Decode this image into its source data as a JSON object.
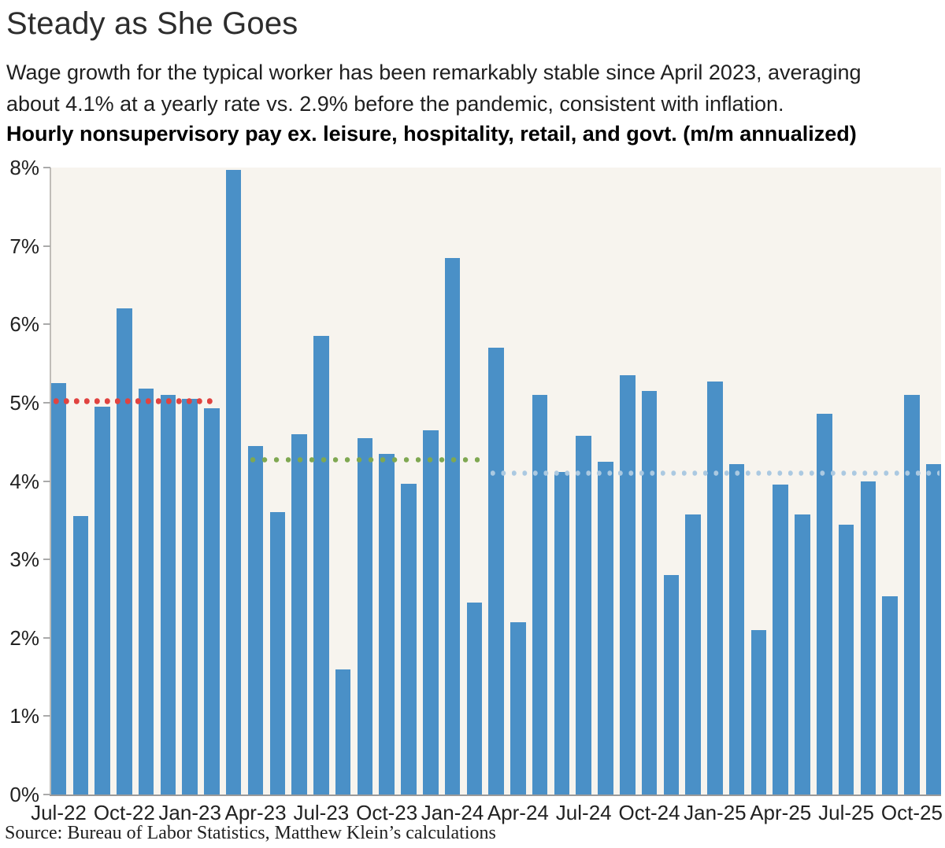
{
  "header": {
    "title": "Steady as She Goes",
    "subtitle_lines": [
      "Wage growth for the typical worker has been remarkably stable since April 2023, averaging",
      "about 4.1% at a yearly rate vs. 2.9% before the pandemic, consistent with inflation."
    ],
    "heading": "Hourly nonsupervisory pay ex. leisure, hospitality, retail, and govt. (m/m annualized)"
  },
  "chart_data": {
    "type": "bar",
    "title": "Steady as She Goes",
    "subtitle": "Wage growth for the typical worker has been remarkably stable since April 2023, averaging about 4.1% at a yearly rate vs. 2.9% before the pandemic, consistent with inflation.",
    "heading": "Hourly nonsupervisory pay ex. leisure, hospitality, retail, and govt. (m/m annualized)",
    "categories": [
      "Jul-22",
      "Aug-22",
      "Sep-22",
      "Oct-22",
      "Nov-22",
      "Dec-22",
      "Jan-23",
      "Feb-23",
      "Mar-23",
      "Apr-23",
      "May-23",
      "Jun-23",
      "Jul-23",
      "Aug-23",
      "Sep-23",
      "Oct-23",
      "Nov-23",
      "Dec-23",
      "Jan-24",
      "Feb-24",
      "Mar-24",
      "Apr-24",
      "May-24",
      "Jun-24",
      "Jul-24",
      "Aug-24",
      "Sep-24",
      "Oct-24",
      "Nov-24",
      "Dec-24",
      "Jan-25",
      "Feb-25",
      "Mar-25",
      "Apr-25",
      "May-25",
      "Jun-25",
      "Jul-25",
      "Aug-25",
      "Sep-25",
      "Oct-25",
      "Nov-25"
    ],
    "values": [
      5.25,
      3.55,
      4.95,
      6.2,
      5.18,
      5.1,
      5.05,
      4.93,
      7.97,
      4.45,
      3.6,
      4.6,
      5.85,
      1.6,
      4.55,
      4.35,
      3.97,
      4.65,
      6.85,
      2.45,
      5.7,
      2.2,
      5.1,
      4.12,
      4.58,
      4.25,
      5.35,
      5.15,
      2.8,
      3.57,
      5.27,
      4.22,
      2.1,
      3.96,
      3.57,
      4.86,
      3.44,
      4.0,
      2.53,
      5.1,
      4.22
    ],
    "x_tick_every": 3,
    "ylim": [
      0,
      8
    ],
    "y_tick_labels": [
      "0%",
      "1%",
      "2%",
      "3%",
      "4%",
      "5%",
      "6%",
      "7%",
      "8%"
    ],
    "grid": false,
    "legend": "none",
    "reference_lines": [
      {
        "name": "avg-jul22-feb23",
        "value": 5.02,
        "start_index": 0,
        "end_index": 7,
        "color": "#e04340",
        "dot": 6.5,
        "gap": 13
      },
      {
        "name": "avg-apr23-feb24",
        "value": 4.27,
        "start_index": 9,
        "end_index": 19,
        "color": "#7fa851",
        "dot": 6,
        "gap": 15
      },
      {
        "name": "avg-mar24-nov25",
        "value": 4.1,
        "start_index": 20,
        "end_index": 40,
        "color": "#abc9e1",
        "dot": 5.5,
        "gap": 13.5
      }
    ],
    "bar_color": "#4a90c7",
    "plot_bg": "#f7f4ee",
    "source": "Source: Bureau of Labor Statistics, Matthew Klein’s calculations"
  }
}
